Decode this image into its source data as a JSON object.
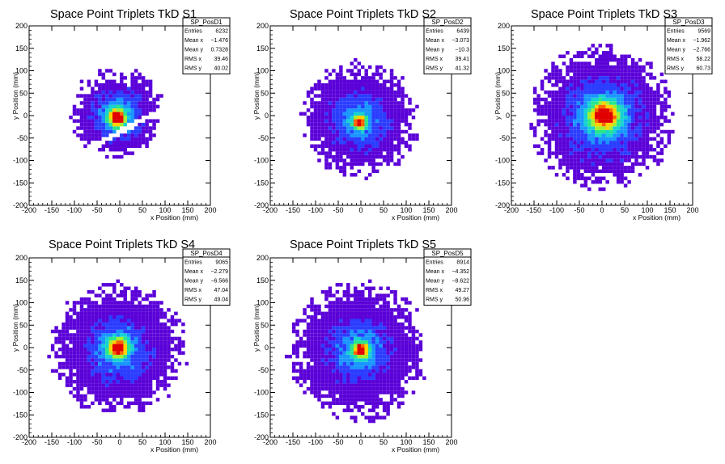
{
  "chart_data": [
    {
      "type": "heatmap",
      "title": "Space Point Triplets TkD S1",
      "xlabel": "x Position (mm)",
      "ylabel": "y Position (mm)",
      "xlim": [
        -200,
        200
      ],
      "ylim": [
        -200,
        200
      ],
      "xticks": [
        "-200",
        "-150",
        "-100",
        "-50",
        "0",
        "50",
        "100",
        "150",
        "200"
      ],
      "yticks": [
        "-200",
        "-150",
        "-100",
        "-50",
        "0",
        "50",
        "100",
        "150",
        "200"
      ],
      "stats": {
        "name": "SP_PosD1",
        "rows": [
          {
            "label": "Entries",
            "value": "6232"
          },
          {
            "label": "Mean x",
            "value": "−1.476"
          },
          {
            "label": "Mean y",
            "value": "0.7328"
          },
          {
            "label": "RMS x",
            "value": "39.46"
          },
          {
            "label": "RMS y",
            "value": "40.02"
          }
        ]
      },
      "distribution": {
        "shape": "disk-with-gap",
        "center": [
          -5,
          0
        ],
        "radius": 100,
        "hot_spot": [
          -5,
          -5
        ],
        "core_sigma": 14,
        "halo_sigma": 45,
        "gap_slope": 0.55,
        "gap_intercept": -30
      }
    },
    {
      "type": "heatmap",
      "title": "Space Point Triplets TkD S2",
      "xlabel": "x Position (mm)",
      "ylabel": "y Position (mm)",
      "xlim": [
        -200,
        200
      ],
      "ylim": [
        -200,
        200
      ],
      "xticks": [
        "-200",
        "-150",
        "-100",
        "-50",
        "0",
        "50",
        "100",
        "150",
        "200"
      ],
      "yticks": [
        "-200",
        "-150",
        "-100",
        "-50",
        "0",
        "50",
        "100",
        "150",
        "200"
      ],
      "stats": {
        "name": "SP_PosD2",
        "rows": [
          {
            "label": "Entries",
            "value": "6439"
          },
          {
            "label": "Mean x",
            "value": "−3.073"
          },
          {
            "label": "Mean y",
            "value": "−10.3"
          },
          {
            "label": "RMS x",
            "value": "39.41"
          },
          {
            "label": "RMS y",
            "value": "41.32"
          }
        ]
      },
      "distribution": {
        "shape": "disk",
        "center": [
          -3,
          -10
        ],
        "radius": 125,
        "hot_spot": [
          -3,
          -15
        ],
        "core_sigma": 10,
        "halo_sigma": 50
      }
    },
    {
      "type": "heatmap",
      "title": "Space Point Triplets TkD S3",
      "xlabel": "x Position (mm)",
      "ylabel": "y Position (mm)",
      "xlim": [
        -200,
        200
      ],
      "ylim": [
        -200,
        200
      ],
      "xticks": [
        "-200",
        "-150",
        "-100",
        "-50",
        "0",
        "50",
        "100",
        "150",
        "200"
      ],
      "yticks": [
        "-200",
        "-150",
        "-100",
        "-50",
        "0",
        "50",
        "100",
        "150",
        "200"
      ],
      "stats": {
        "name": "SP_PosD3",
        "rows": [
          {
            "label": "Entries",
            "value": "9569"
          },
          {
            "label": "Mean x",
            "value": "−1.962"
          },
          {
            "label": "Mean y",
            "value": "−2.766"
          },
          {
            "label": "RMS x",
            "value": "58.22"
          },
          {
            "label": "RMS y",
            "value": "60.73"
          }
        ]
      },
      "distribution": {
        "shape": "disk",
        "center": [
          0,
          -3
        ],
        "radius": 155,
        "hot_spot": [
          5,
          0
        ],
        "core_sigma": 22,
        "halo_sigma": 70
      }
    },
    {
      "type": "heatmap",
      "title": "Space Point Triplets TkD S4",
      "xlabel": "x Position (mm)",
      "ylabel": "y Position (mm)",
      "xlim": [
        -200,
        200
      ],
      "ylim": [
        -200,
        200
      ],
      "xticks": [
        "-200",
        "-150",
        "-100",
        "-50",
        "0",
        "50",
        "100",
        "150",
        "200"
      ],
      "yticks": [
        "-200",
        "-150",
        "-100",
        "-50",
        "0",
        "50",
        "100",
        "150",
        "200"
      ],
      "stats": {
        "name": "SP_PosD4",
        "rows": [
          {
            "label": "Entries",
            "value": "9065"
          },
          {
            "label": "Mean x",
            "value": "−2.279"
          },
          {
            "label": "Mean y",
            "value": "−6.566"
          },
          {
            "label": "RMS x",
            "value": "47.04"
          },
          {
            "label": "RMS y",
            "value": "49.04"
          }
        ]
      },
      "distribution": {
        "shape": "disk",
        "center": [
          -3,
          -5
        ],
        "radius": 145,
        "hot_spot": [
          -3,
          0
        ],
        "core_sigma": 15,
        "halo_sigma": 55
      }
    },
    {
      "type": "heatmap",
      "title": "Space Point Triplets TkD S5",
      "xlabel": "x Position (mm)",
      "ylabel": "y Position (mm)",
      "xlim": [
        -200,
        200
      ],
      "ylim": [
        -200,
        200
      ],
      "xticks": [
        "-200",
        "-150",
        "-100",
        "-50",
        "0",
        "50",
        "100",
        "150",
        "200"
      ],
      "yticks": [
        "-200",
        "-150",
        "-100",
        "-50",
        "0",
        "50",
        "100",
        "150",
        "200"
      ],
      "stats": {
        "name": "SP_PosD5",
        "rows": [
          {
            "label": "Entries",
            "value": "8914"
          },
          {
            "label": "Mean x",
            "value": "−4.352"
          },
          {
            "label": "Mean y",
            "value": "−8.622"
          },
          {
            "label": "RMS x",
            "value": "49.27"
          },
          {
            "label": "RMS y",
            "value": "50.96"
          }
        ]
      },
      "distribution": {
        "shape": "disk",
        "center": [
          -5,
          -8
        ],
        "radius": 150,
        "hot_spot": [
          0,
          -5
        ],
        "core_sigma": 12,
        "halo_sigma": 55
      }
    }
  ],
  "palette": [
    "#ffffff",
    "#5a00d8",
    "#2a3cff",
    "#1896ff",
    "#16d2d2",
    "#28e68c",
    "#a0f032",
    "#ffd200",
    "#ff6400",
    "#e00000"
  ]
}
